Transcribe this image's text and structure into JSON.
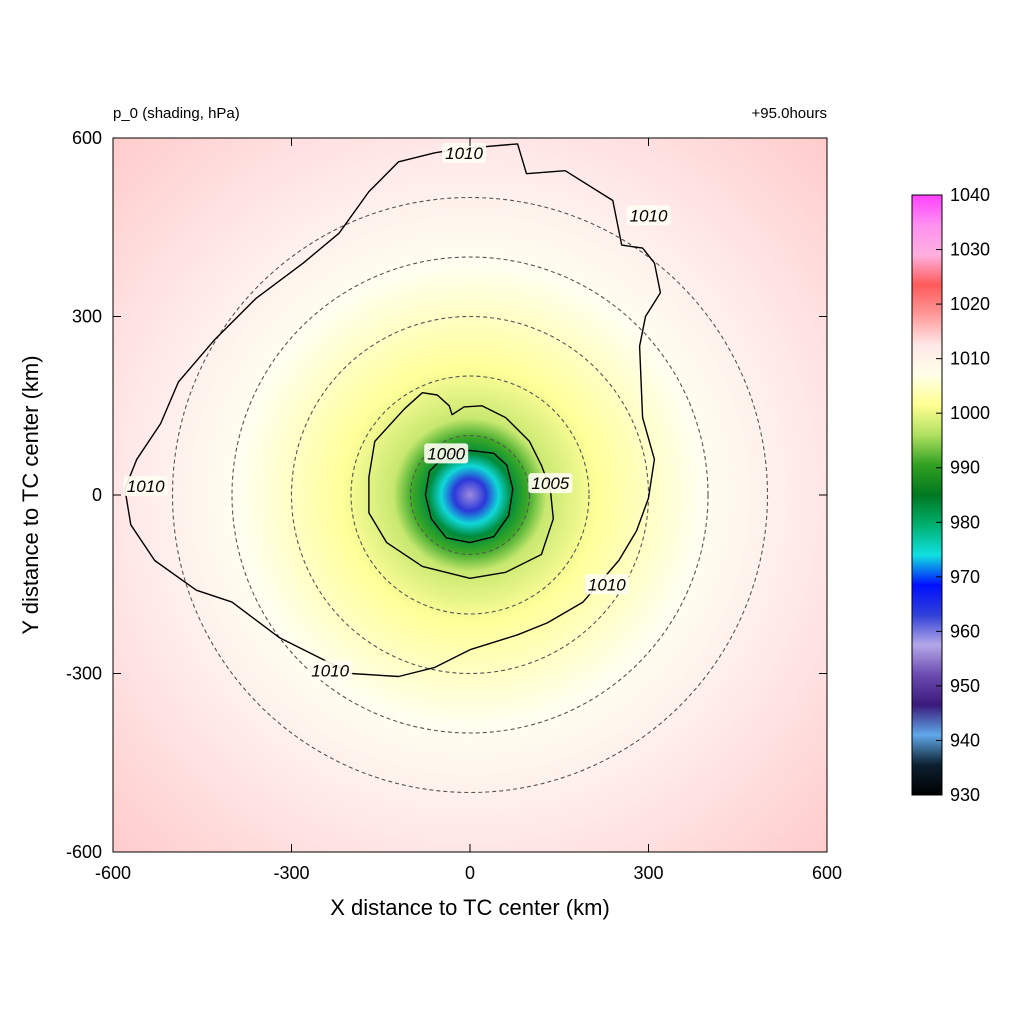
{
  "header": {
    "variable_label": "p_0 (shading, hPa)",
    "time_label": "+95.0hours"
  },
  "colors": {
    "contour": "#000000",
    "range_circle": "#555555",
    "colorbar": [
      "#000000",
      "#0c2030",
      "#5fa8e8",
      "#3a1a7a",
      "#6a4ab0",
      "#b4a8e8",
      "#3040d8",
      "#0010ff",
      "#10e0e0",
      "#00b070",
      "#007820",
      "#30a020",
      "#b0e060",
      "#ffff90",
      "#ffffe8",
      "#ffe8e8",
      "#ff9a9a",
      "#ff5a5a",
      "#ffb0e0",
      "#ff90f0",
      "#ff40ff"
    ]
  },
  "chart_data": {
    "type": "heatmap",
    "title": "p_0 (shading, hPa)",
    "annotation": "+95.0hours",
    "xlabel": "X distance to TC center (km)",
    "ylabel": "Y distance to TC center (km)",
    "xlim": [
      -600,
      600
    ],
    "ylim": [
      -600,
      600
    ],
    "xticks": [
      "-600",
      "-300",
      "0",
      "300",
      "600"
    ],
    "yticks": [
      "-600",
      "-300",
      "0",
      "300",
      "600"
    ],
    "colorbar": {
      "range": [
        930,
        1040
      ],
      "tick_values": [
        1040,
        1030,
        1020,
        1010,
        1000,
        990,
        980,
        970,
        960,
        950,
        940,
        930
      ],
      "tick_labels": [
        "1040",
        "1030",
        "1020",
        "1010",
        "1000",
        "990",
        "980",
        "970",
        "960",
        "950",
        "940",
        "930"
      ]
    },
    "center_pressure": 955,
    "range_circles_km": [
      100,
      200,
      300,
      400,
      500
    ],
    "contours": [
      {
        "level": 1000,
        "label": "1000",
        "label_points": [
          [
            -40,
            70
          ]
        ],
        "points": [
          [
            0,
            75
          ],
          [
            40,
            70
          ],
          [
            62,
            50
          ],
          [
            72,
            10
          ],
          [
            65,
            -35
          ],
          [
            40,
            -70
          ],
          [
            0,
            -80
          ],
          [
            -40,
            -72
          ],
          [
            -65,
            -40
          ],
          [
            -75,
            0
          ],
          [
            -68,
            40
          ],
          [
            -40,
            68
          ]
        ]
      },
      {
        "level": 1005,
        "label": "1005",
        "label_points": [
          [
            135,
            20
          ]
        ],
        "points": [
          [
            -35,
            150
          ],
          [
            -55,
            168
          ],
          [
            -80,
            172
          ],
          [
            -110,
            145
          ],
          [
            -160,
            90
          ],
          [
            -170,
            30
          ],
          [
            -170,
            -30
          ],
          [
            -140,
            -80
          ],
          [
            -80,
            -120
          ],
          [
            0,
            -140
          ],
          [
            60,
            -130
          ],
          [
            120,
            -100
          ],
          [
            140,
            -40
          ],
          [
            135,
            10
          ],
          [
            120,
            50
          ],
          [
            100,
            90
          ],
          [
            60,
            130
          ],
          [
            20,
            150
          ],
          [
            -10,
            148
          ],
          [
            -30,
            135
          ]
        ]
      },
      {
        "level": 1010,
        "label": "1010",
        "label_points": [
          [
            -10,
            575
          ],
          [
            300,
            470
          ],
          [
            -545,
            15
          ],
          [
            -235,
            -295
          ],
          [
            230,
            -150
          ]
        ],
        "points": [
          [
            -30,
            580
          ],
          [
            20,
            585
          ],
          [
            80,
            590
          ],
          [
            95,
            540
          ],
          [
            160,
            545
          ],
          [
            240,
            495
          ],
          [
            255,
            420
          ],
          [
            290,
            415
          ],
          [
            310,
            390
          ],
          [
            320,
            340
          ],
          [
            295,
            300
          ],
          [
            285,
            250
          ],
          [
            290,
            130
          ],
          [
            310,
            60
          ],
          [
            300,
            -5
          ],
          [
            280,
            -60
          ],
          [
            250,
            -110
          ],
          [
            190,
            -180
          ],
          [
            130,
            -215
          ],
          [
            80,
            -235
          ],
          [
            0,
            -260
          ],
          [
            -60,
            -290
          ],
          [
            -120,
            -305
          ],
          [
            -200,
            -300
          ],
          [
            -320,
            -240
          ],
          [
            -400,
            -180
          ],
          [
            -460,
            -160
          ],
          [
            -530,
            -110
          ],
          [
            -570,
            -50
          ],
          [
            -580,
            10
          ],
          [
            -560,
            60
          ],
          [
            -520,
            120
          ],
          [
            -490,
            190
          ],
          [
            -430,
            260
          ],
          [
            -360,
            330
          ],
          [
            -280,
            390
          ],
          [
            -220,
            440
          ],
          [
            -170,
            510
          ],
          [
            -120,
            560
          ],
          [
            -60,
            575
          ]
        ]
      }
    ]
  }
}
